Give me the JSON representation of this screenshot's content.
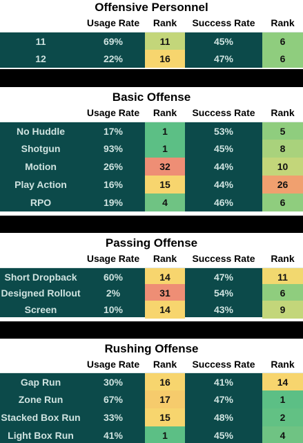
{
  "columns": {
    "usage": "Usage Rate",
    "rank": "Rank",
    "success": "Success Rate",
    "rank2": "Rank"
  },
  "sections": [
    {
      "title": "Offensive Personnel",
      "rows": [
        {
          "label": "11",
          "usage": "69%",
          "usage_rank": "11",
          "success": "45%",
          "success_rank": "6"
        },
        {
          "label": "12",
          "usage": "22%",
          "usage_rank": "16",
          "success": "47%",
          "success_rank": "6"
        }
      ]
    },
    {
      "title": "Basic Offense",
      "rows": [
        {
          "label": "No Huddle",
          "usage": "17%",
          "usage_rank": "1",
          "success": "53%",
          "success_rank": "5"
        },
        {
          "label": "Shotgun",
          "usage": "93%",
          "usage_rank": "1",
          "success": "45%",
          "success_rank": "8"
        },
        {
          "label": "Motion",
          "usage": "26%",
          "usage_rank": "32",
          "success": "44%",
          "success_rank": "10"
        },
        {
          "label": "Play Action",
          "usage": "16%",
          "usage_rank": "15",
          "success": "44%",
          "success_rank": "26"
        },
        {
          "label": "RPO",
          "usage": "19%",
          "usage_rank": "4",
          "success": "46%",
          "success_rank": "6"
        }
      ]
    },
    {
      "title": "Passing Offense",
      "rows": [
        {
          "label": "Short Dropback",
          "usage": "60%",
          "usage_rank": "14",
          "success": "47%",
          "success_rank": "11"
        },
        {
          "label": "Designed Rollout",
          "usage": "2%",
          "usage_rank": "31",
          "success": "54%",
          "success_rank": "6"
        },
        {
          "label": "Screen",
          "usage": "10%",
          "usage_rank": "14",
          "success": "43%",
          "success_rank": "9"
        }
      ]
    },
    {
      "title": "Rushing Offense",
      "rows": [
        {
          "label": "Gap Run",
          "usage": "30%",
          "usage_rank": "16",
          "success": "41%",
          "success_rank": "14"
        },
        {
          "label": "Zone Run",
          "usage": "67%",
          "usage_rank": "17",
          "success": "47%",
          "success_rank": "1"
        },
        {
          "label": "Stacked Box Run",
          "usage": "33%",
          "usage_rank": "15",
          "success": "48%",
          "success_rank": "2"
        },
        {
          "label": "Light Box Run",
          "usage": "41%",
          "usage_rank": "1",
          "success": "45%",
          "success_rank": "4"
        }
      ]
    }
  ],
  "colors": {
    "row_bg": "#0c4a4a",
    "rank_best": "#5cbf85",
    "rank_good": "#8fcd7e",
    "rank_mid_good": "#c3d67a",
    "rank_mid": "#f7d56e",
    "rank_mid_bad": "#f3b56a",
    "rank_bad": "#ee8e75"
  }
}
